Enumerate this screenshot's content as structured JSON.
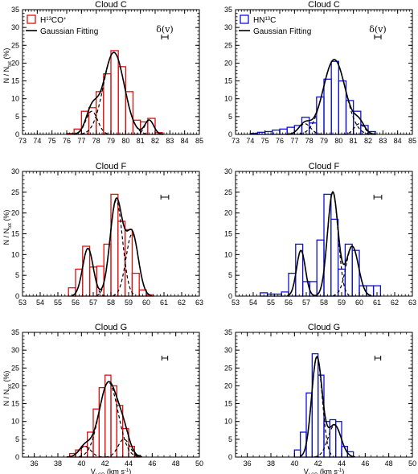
{
  "chart_data": [
    {
      "type": "bar",
      "title": "Cloud C",
      "color": "#e01010",
      "legend": {
        "label_base": "H",
        "label_sup1": "13",
        "label_mid": "CO",
        "label_sup2": "+",
        "fit_label": "Gaussian Fitting"
      },
      "annotation": "δ(v)",
      "ylabel_main": "N / N",
      "ylabel_sub": "tot",
      "ylabel_unit": " (%)",
      "xlim": [
        73,
        85
      ],
      "ylim": [
        0,
        35
      ],
      "xticks": [
        73,
        74,
        75,
        76,
        77,
        78,
        79,
        80,
        81,
        82,
        83,
        84,
        85
      ],
      "yticks": [
        0,
        5,
        10,
        15,
        20,
        25,
        30,
        35
      ],
      "bin_width": 0.5,
      "bins": [
        76.25,
        76.75,
        77.25,
        77.75,
        78.25,
        78.75,
        79.25,
        79.75,
        80.25,
        80.75,
        81.25,
        81.75,
        82.25
      ],
      "values": [
        0.3,
        1.5,
        6.5,
        7.5,
        12.0,
        17.0,
        23.5,
        19.0,
        12.0,
        4.0,
        3.5,
        4.5,
        0.5
      ],
      "fit_components": [
        {
          "amp": 6.5,
          "mu": 77.7,
          "sigma": 0.4
        },
        {
          "amp": 23.0,
          "mu": 79.2,
          "sigma": 0.7
        },
        {
          "amp": 4.0,
          "mu": 81.6,
          "sigma": 0.3
        }
      ],
      "resolution_bar": 0.22,
      "xlabel": ""
    },
    {
      "type": "bar",
      "title": "Cloud C",
      "color": "#1010d8",
      "legend": {
        "label_base": "HN",
        "label_sup1": "13",
        "label_mid": "C",
        "label_sup2": "",
        "fit_label": "Gaussian Fitting"
      },
      "annotation": "δ(v)",
      "ylabel_main": "",
      "ylabel_sub": "",
      "ylabel_unit": "",
      "xlim": [
        73,
        85
      ],
      "ylim": [
        0,
        35
      ],
      "xticks": [
        73,
        74,
        75,
        76,
        77,
        78,
        79,
        80,
        81,
        82,
        83,
        84,
        85
      ],
      "yticks": [
        0,
        5,
        10,
        15,
        20,
        25,
        30,
        35
      ],
      "bin_width": 0.5,
      "bins": [
        74.25,
        74.75,
        75.25,
        75.75,
        76.25,
        76.75,
        77.25,
        77.75,
        78.25,
        78.75,
        79.25,
        79.75,
        80.25,
        80.75,
        81.25,
        81.75,
        82.25
      ],
      "values": [
        0.3,
        0.6,
        0.8,
        1.2,
        1.5,
        2.0,
        2.5,
        4.8,
        3.2,
        10.5,
        15.5,
        20.5,
        15.0,
        9.5,
        6.5,
        2.5,
        0.8
      ],
      "fit_components": [
        {
          "amp": 3.0,
          "mu": 77.7,
          "sigma": 0.4
        },
        {
          "amp": 21.0,
          "mu": 79.7,
          "sigma": 0.75
        },
        {
          "amp": 3.0,
          "mu": 81.4,
          "sigma": 0.35
        }
      ],
      "resolution_bar": 0.22,
      "xlabel": ""
    },
    {
      "type": "bar",
      "title": "Cloud F",
      "color": "#e01010",
      "legend": null,
      "annotation": "",
      "ylabel_main": "N / N",
      "ylabel_sub": "tot",
      "ylabel_unit": " (%)",
      "xlim": [
        53,
        63
      ],
      "ylim": [
        0,
        30
      ],
      "xticks": [
        53,
        54,
        55,
        56,
        57,
        58,
        59,
        60,
        61,
        62,
        63
      ],
      "yticks": [
        0,
        5,
        10,
        15,
        20,
        25,
        30
      ],
      "bin_width": 0.4,
      "bins": [
        55.8,
        56.2,
        56.6,
        57.0,
        57.4,
        57.8,
        58.2,
        58.6,
        59.0,
        59.4,
        59.8,
        60.2
      ],
      "values": [
        2.0,
        6.5,
        12.0,
        7.0,
        7.2,
        12.5,
        24.5,
        18.0,
        16.0,
        5.5,
        1.5,
        0.3
      ],
      "fit_components": [
        {
          "amp": 11.5,
          "mu": 56.7,
          "sigma": 0.3
        },
        {
          "amp": 23.0,
          "mu": 58.3,
          "sigma": 0.35
        },
        {
          "amp": 15.0,
          "mu": 59.2,
          "sigma": 0.35
        }
      ],
      "resolution_bar": 0.22,
      "xlabel": ""
    },
    {
      "type": "bar",
      "title": "Cloud F",
      "color": "#1010d8",
      "legend": null,
      "annotation": "",
      "ylabel_main": "",
      "ylabel_sub": "",
      "ylabel_unit": "",
      "xlim": [
        53,
        63
      ],
      "ylim": [
        0,
        30
      ],
      "xticks": [
        53,
        54,
        55,
        56,
        57,
        58,
        59,
        60,
        61,
        62,
        63
      ],
      "yticks": [
        0,
        5,
        10,
        15,
        20,
        25,
        30
      ],
      "bin_width": 0.4,
      "bins": [
        54.6,
        55.0,
        55.4,
        55.8,
        56.2,
        56.6,
        57.0,
        57.4,
        57.8,
        58.2,
        58.6,
        59.0,
        59.4,
        59.8,
        60.2,
        60.6,
        61.0
      ],
      "values": [
        0.8,
        0.5,
        0.5,
        1.0,
        5.5,
        12.5,
        3.5,
        3.5,
        13.5,
        24.5,
        18.5,
        6.5,
        12.5,
        11.0,
        2.5,
        2.5,
        2.5
      ],
      "fit_components": [
        {
          "amp": 11.0,
          "mu": 56.7,
          "sigma": 0.25
        },
        {
          "amp": 25.0,
          "mu": 58.5,
          "sigma": 0.3
        },
        {
          "amp": 12.0,
          "mu": 59.6,
          "sigma": 0.35
        }
      ],
      "resolution_bar": 0.22,
      "xlabel": ""
    },
    {
      "type": "bar",
      "title": "Cloud G",
      "color": "#e01010",
      "legend": null,
      "annotation": "",
      "ylabel_main": "N / N",
      "ylabel_sub": "tot",
      "ylabel_unit": " (%)",
      "xlim": [
        35,
        50
      ],
      "ylim": [
        0,
        35
      ],
      "xticks": [
        36,
        38,
        40,
        42,
        44,
        46,
        48,
        50
      ],
      "yticks": [
        0,
        5,
        10,
        15,
        20,
        25,
        30,
        35
      ],
      "bin_width": 0.5,
      "bins": [
        39.25,
        39.75,
        40.25,
        40.75,
        41.25,
        41.75,
        42.25,
        42.75,
        43.25,
        43.75,
        44.25,
        44.75
      ],
      "values": [
        1.0,
        2.0,
        3.0,
        7.0,
        13.5,
        19.5,
        23.0,
        20.0,
        14.5,
        8.0,
        3.0,
        0.5
      ],
      "fit_components": [
        {
          "amp": 3.0,
          "mu": 40.3,
          "sigma": 0.5
        },
        {
          "amp": 21.0,
          "mu": 42.3,
          "sigma": 0.8
        },
        {
          "amp": 5.0,
          "mu": 43.6,
          "sigma": 0.5
        }
      ],
      "resolution_bar": 0.25,
      "xlabel": "V_LSR (km s^-1)"
    },
    {
      "type": "bar",
      "title": "Cloud G",
      "color": "#1010d8",
      "legend": null,
      "annotation": "",
      "ylabel_main": "",
      "ylabel_sub": "",
      "ylabel_unit": "",
      "xlim": [
        35,
        50
      ],
      "ylim": [
        0,
        35
      ],
      "xticks": [
        36,
        38,
        40,
        42,
        44,
        46,
        48,
        50
      ],
      "yticks": [
        0,
        5,
        10,
        15,
        20,
        25,
        30,
        35
      ],
      "bin_width": 0.5,
      "bins": [
        40.25,
        40.75,
        41.25,
        41.75,
        42.25,
        42.75,
        43.25,
        43.75,
        44.25,
        44.75
      ],
      "values": [
        2.0,
        7.0,
        18.0,
        29.0,
        23.0,
        10.0,
        10.5,
        10.0,
        3.0,
        1.5
      ],
      "fit_components": [
        {
          "amp": 28.0,
          "mu": 41.9,
          "sigma": 0.45
        },
        {
          "amp": 9.0,
          "mu": 43.4,
          "sigma": 0.55
        }
      ],
      "resolution_bar": 0.25,
      "xlabel": "V_LSR (km s^-1)"
    }
  ]
}
